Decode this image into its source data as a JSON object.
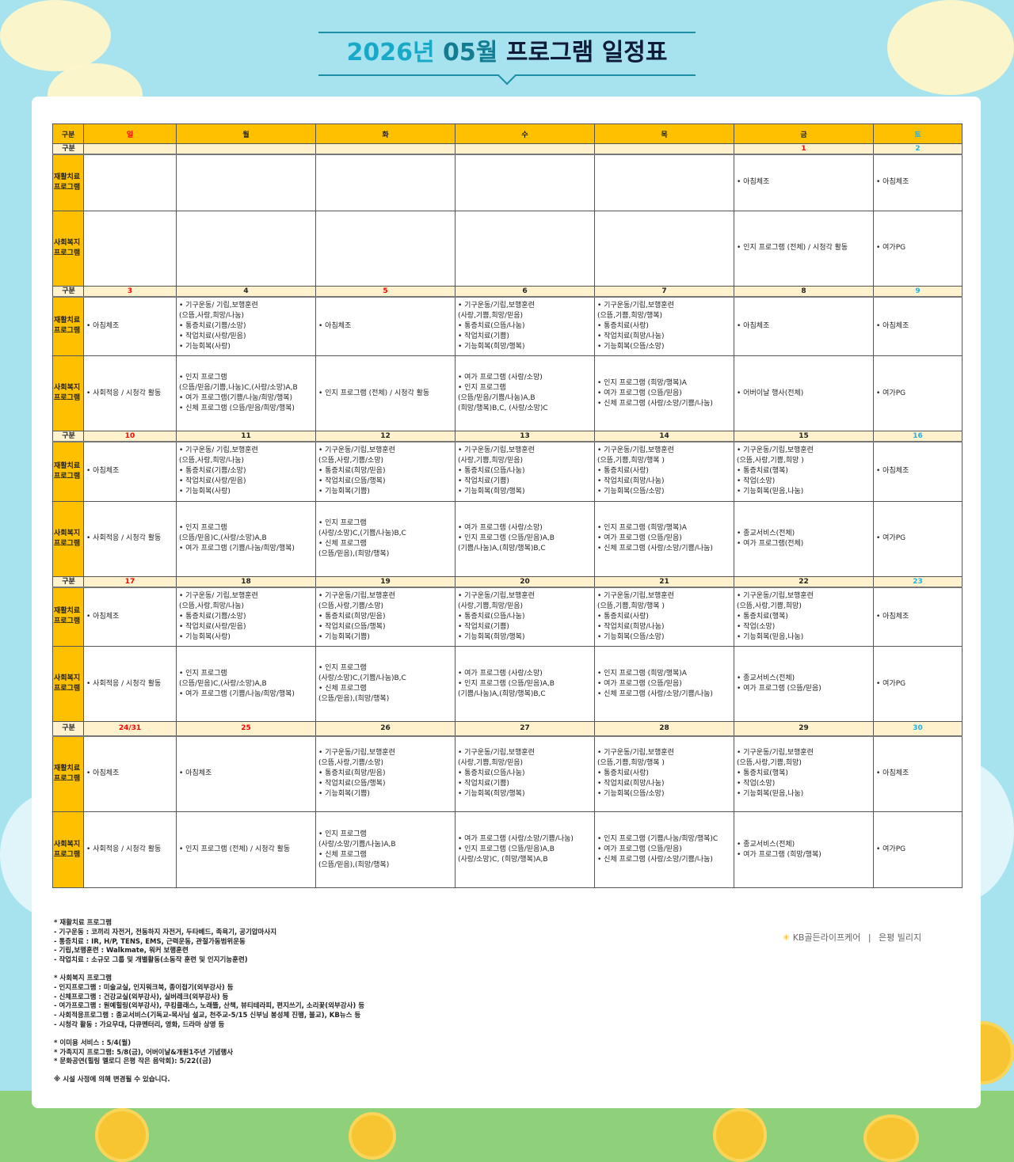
{
  "title": {
    "year_part": "2026년",
    "month_part": "05월",
    "rest": "프로그램 일정표"
  },
  "colors": {
    "header": "#ffc000",
    "date_row": "#fff2cc",
    "holiday": "#ff0000",
    "saturday": "#1fb3e6",
    "background": "#a6e3ee"
  },
  "table": {
    "corner_label": "구분",
    "weekdays": [
      {
        "label": "일",
        "color": "red"
      },
      {
        "label": "월",
        "color": "black"
      },
      {
        "label": "화",
        "color": "black"
      },
      {
        "label": "수",
        "color": "black"
      },
      {
        "label": "목",
        "color": "black"
      },
      {
        "label": "금",
        "color": "black"
      },
      {
        "label": "토",
        "color": "blue"
      }
    ],
    "row_labels": {
      "date": "구분",
      "rehab": "재활치료 프로그램",
      "social": "사회복지 프로그램"
    },
    "weeks": [
      {
        "dates": [
          {
            "label": "",
            "color": "black"
          },
          {
            "label": "",
            "color": "black"
          },
          {
            "label": "",
            "color": "black"
          },
          {
            "label": "",
            "color": "black"
          },
          {
            "label": "",
            "color": "black"
          },
          {
            "label": "1",
            "color": "red"
          },
          {
            "label": "2",
            "color": "blue"
          }
        ],
        "rehab": [
          [],
          [],
          [],
          [],
          [],
          [
            "• 아침체조"
          ],
          [
            "• 아침체조"
          ]
        ],
        "social": [
          [],
          [],
          [],
          [],
          [],
          [
            "• 인지 프로그램 (전체) / 시청각 활동"
          ],
          [
            "• 여가PG"
          ]
        ]
      },
      {
        "dates": [
          {
            "label": "3",
            "color": "red"
          },
          {
            "label": "4",
            "color": "black"
          },
          {
            "label": "5",
            "color": "red"
          },
          {
            "label": "6",
            "color": "black"
          },
          {
            "label": "7",
            "color": "black"
          },
          {
            "label": "8",
            "color": "black"
          },
          {
            "label": "9",
            "color": "blue"
          }
        ],
        "rehab": [
          [
            "• 아침체조"
          ],
          [
            "• 기구운동/ 기립,보행훈련",
            "(으뜸,사랑,희망/나눔)",
            "• 통증치료(기쁨/소망)",
            "• 작업치료(사랑/믿음)",
            "• 기능회복(사랑)"
          ],
          [
            "• 아침체조"
          ],
          [
            "•  기구운동/기립,보행훈련",
            "(사랑,기쁨,희망/믿음)",
            "• 통증치료(으뜸/나눔)",
            "• 작업치료(기쁨)",
            "• 기능회복(희망/행복)"
          ],
          [
            "• 기구운동/기립,보행훈련",
            "(으뜸,기쁨,희망/행복)",
            "• 통증치료(사랑)",
            "• 작업치료(희망/나눔)",
            "• 기능회복(으뜸/소망)"
          ],
          [
            "• 아침체조"
          ],
          [
            "• 아침체조"
          ]
        ],
        "social": [
          [
            "• 사회적응 / 시청각 활동"
          ],
          [
            "• 인지 프로그램",
            "(으뜸/믿음/기쁨,나눔)C,(사랑/소망)A,B",
            "• 여가 프로그램(기쁨/나눔/희망/행복)",
            "• 신체 프로그램 (으뜸/믿음/희망/행복)"
          ],
          [
            "• 인지 프로그램 (전체) / 시청각 활동"
          ],
          [
            "• 여가 프로그램 (사랑/소망)",
            "• 인지 프로그램",
            "(으뜸/믿음/기쁨/나눔)A,B",
            "(희망/행복)B,C, (사랑/소망)C"
          ],
          [
            "• 인지 프로그램 (희망/행복)A",
            "• 여가 프로그램 (으뜸/믿음)",
            "• 신체 프로그램 (사랑/소망/기쁨/나눔)"
          ],
          [
            "• 어버이날 행사(전체)"
          ],
          [
            "• 여가PG"
          ]
        ]
      },
      {
        "dates": [
          {
            "label": "10",
            "color": "red"
          },
          {
            "label": "11",
            "color": "black"
          },
          {
            "label": "12",
            "color": "black"
          },
          {
            "label": "13",
            "color": "black"
          },
          {
            "label": "14",
            "color": "black"
          },
          {
            "label": "15",
            "color": "black"
          },
          {
            "label": "16",
            "color": "blue"
          }
        ],
        "rehab": [
          [
            "• 아침체조"
          ],
          [
            "• 기구운동/ 기립,보행훈련",
            "(으뜸,사랑,희망/나눔)",
            "• 통증치료(기쁨/소망)",
            "• 작업치료(사랑/믿음)",
            "• 기능회복(사랑)"
          ],
          [
            "• 기구운동/기립,보행훈련",
            "(으뜸,사랑,기쁨/소망)",
            "• 통증치료(희망/믿음)",
            "• 작업치료(으뜸/행복)",
            "• 기능회복(기쁨)"
          ],
          [
            "•  기구운동/기립,보행훈련",
            "(사랑,기쁨,희망/믿음)",
            "• 통증치료(으뜸/나눔)",
            "• 작업치료(기쁨)",
            "• 기능회복(희망/행복)"
          ],
          [
            "• 기구운동/기립,보행훈련",
            "(으뜸,기쁨,희망/행복 )",
            "• 통증치료(사랑)",
            "• 작업치료(희망/나눔)",
            "• 기능회복(으뜸/소망)"
          ],
          [
            "•  기구운동/기립,보행훈련",
            "(으뜸,사랑,기쁨,희망 )",
            "• 통증치료(행복)",
            "• 작업(소망)",
            "• 기능회복(믿음,나눔)"
          ],
          [
            "• 아침체조"
          ]
        ],
        "social": [
          [
            "• 사회적응 / 시청각 활동"
          ],
          [
            "• 인지 프로그램",
            "(으뜸/믿음)C,(사랑/소망)A,B",
            "• 여가 프로그램 (기쁨/나눔/희망/행복)"
          ],
          [
            "• 인지 프로그램",
            "(사랑/소망)C,(기쁨/나눔)B,C",
            "• 신체 프로그램",
            "(으뜸/믿음),(희망/행복)"
          ],
          [
            "• 여가 프로그램 (사랑/소망)",
            "• 인지 프로그램 (으뜸/믿음)A,B",
            "(기쁨/나눔)A,(희망/행복)B,C"
          ],
          [
            "• 인지 프로그램 (희망/행복)A",
            "• 여가 프로그램 (으뜸/믿음)",
            "• 신체 프로그램 (사랑/소망/기쁨/나눔)"
          ],
          [
            "• 종교서비스(전체)",
            "• 여가 프로그램(전체)"
          ],
          [
            "• 여가PG"
          ]
        ]
      },
      {
        "dates": [
          {
            "label": "17",
            "color": "red"
          },
          {
            "label": "18",
            "color": "black"
          },
          {
            "label": "19",
            "color": "black"
          },
          {
            "label": "20",
            "color": "black"
          },
          {
            "label": "21",
            "color": "black"
          },
          {
            "label": "22",
            "color": "black"
          },
          {
            "label": "23",
            "color": "blue"
          }
        ],
        "rehab": [
          [
            "• 아침체조"
          ],
          [
            "• 기구운동/ 기립,보행훈련",
            "(으뜸,사랑,희망/나눔)",
            "• 통증치료(기쁨/소망)",
            "• 작업치료(사랑/믿음)",
            "• 기능회복(사랑)"
          ],
          [
            "• 기구운동/기립,보행훈련",
            "(으뜸,사랑,기쁨/소망)",
            "• 통증치료(희망/믿음)",
            "• 작업치료(으뜸/행복)",
            "• 기능회복(기쁨)"
          ],
          [
            "•  기구운동/기립,보행훈련",
            "(사랑,기쁨,희망/믿음)",
            "• 통증치료(으뜸/나눔)",
            "• 작업치료(기쁨)",
            "• 기능회복(희망/행복)"
          ],
          [
            "• 기구운동/기립,보행훈련",
            "(으뜸,기쁨,희망/행복 )",
            "• 통증치료(사랑)",
            "• 작업치료(희망/나눔)",
            "• 기능회복(으뜸/소망)"
          ],
          [
            "•  기구운동/기립,보행훈련",
            "(으뜸,사랑,기쁨,희망)",
            "• 통증치료(행복)",
            "• 작업(소망)",
            "• 기능회복(믿음,나눔)"
          ],
          [
            "• 아침체조"
          ]
        ],
        "social": [
          [
            "• 사회적응 / 시청각 활동"
          ],
          [
            "• 인지 프로그램",
            "(으뜸/믿음)C,(사랑/소망)A,B",
            "• 여가 프로그램 (기쁨/나눔/희망/행복)"
          ],
          [
            "• 인지 프로그램",
            "(사랑/소망)C,(기쁨/나눔)B,C",
            "• 신체 프로그램",
            "(으뜸/믿음),(희망/행복)"
          ],
          [
            "• 여가 프로그램 (사랑/소망)",
            "• 인지 프로그램 (으뜸/믿음)A,B",
            "(기쁨/나눔)A,(희망/행복)B,C"
          ],
          [
            "• 인지 프로그램 (희망/행복)A",
            "• 여가 프로그램 (으뜸/믿음)",
            "• 신체 프로그램 (사랑/소망/기쁨/나눔)"
          ],
          [
            "• 종교서비스(전체)",
            "• 여가 프로그램 (으뜸/믿음)"
          ],
          [
            "• 여가PG"
          ]
        ]
      },
      {
        "dates": [
          {
            "label": "24/31",
            "color": "red"
          },
          {
            "label": "25",
            "color": "red"
          },
          {
            "label": "26",
            "color": "black"
          },
          {
            "label": "27",
            "color": "black"
          },
          {
            "label": "28",
            "color": "black"
          },
          {
            "label": "29",
            "color": "black"
          },
          {
            "label": "30",
            "color": "blue"
          }
        ],
        "rehab": [
          [
            "• 아침체조"
          ],
          [
            "• 아침체조"
          ],
          [
            "• 기구운동/기립,보행훈련",
            "(으뜸,사랑,기쁨/소망)",
            "• 통증치료(희망/믿음)",
            "• 작업치료(으뜸/행복)",
            "• 기능회복(기쁨)"
          ],
          [
            "•  기구운동/기립,보행훈련",
            "(사랑,기쁨,희망/믿음)",
            "• 통증치료(으뜸/나눔)",
            "• 작업치료(기쁨)",
            "• 기능회복(희망/행복)"
          ],
          [
            "• 기구운동/기립,보행훈련",
            "(으뜸,기쁨,희망/행복 )",
            "• 통증치료(사랑)",
            "• 작업치료(희망/나눔)",
            "• 기능회복(으뜸/소망)"
          ],
          [
            "•  기구운동/기립,보행훈련",
            "(으뜸,사랑,기쁨,희망)",
            "• 통증치료(행복)",
            "• 작업(소망)",
            "• 기능회복(믿음,나눔)"
          ],
          [
            "• 아침체조"
          ]
        ],
        "social": [
          [
            "• 사회적응 / 시청각 활동"
          ],
          [
            "• 인지 프로그램 (전체) / 시청각 활동"
          ],
          [
            "• 인지 프로그램",
            "(사랑/소망/기쁨/나눔)A,B",
            "• 신체 프로그램",
            "(으뜸/믿음),(희망/행복)"
          ],
          [
            "• 여가 프로그램 (사랑/소망/기쁨/나눔)",
            "• 인지 프로그램 (으뜸/믿음)A,B",
            "(사랑/소망)C, (희망/행복)A,B"
          ],
          [
            "• 인지 프로그램 (기쁨/나눔/희망/행복)C",
            "• 여가 프로그램 (으뜸/믿음)",
            "• 신체 프로그램 (사랑/소망/기쁨/나눔)"
          ],
          [
            "• 종교서비스(전체)",
            "• 여가 프로그램 (희망/행복)"
          ],
          [
            "• 여가PG"
          ]
        ]
      }
    ]
  },
  "footnotes": [
    [
      "* 재활치료 프로그램",
      " - 기구운동 : 코끼리 자전거, 전동하지 자전거, 두타베드, 족욕기, 공기압마사지",
      " - 통증치료 : IR, H/P, TENS, EMS, 근력운동, 관절가동범위운동",
      " - 기립,보행훈련 : Walkmate, 워커 보행훈련",
      " - 작업치료 : 소규모 그룹 및 개별활동(소동작 훈련 및 인지기능훈련)"
    ],
    [
      "* 사회복지 프로그램",
      " - 인지프로그램 : 미술교실, 인지워크북, 종이접기(외부강사) 등",
      " - 신체프로그램 : 건강교실(외부강사), 실버레크(외부강사) 등",
      " - 여가프로그램 : 원예힐링(외부강사), 쿠킹클래스, 노래뜰, 산책, 뷰티테라피, 편지쓰기, 소리꽃(외부강사) 등",
      " - 사회적응프로그램 : 종교서비스(기독교-목사님 설교, 천주교-5/15 신부님 봉성체 진행, 불교), KB뉴스 등",
      " - 시청각 활동 : 가요무대, 다큐멘터리, 영화, 드라마 상영 등"
    ],
    [
      "* 이미용 서비스 : 5/4(월)",
      "* 가족지지 프로그램: 5/8(금), 어버이날&개원1주년 기념행사",
      "* 문화공연(힐링 멜로디 은평 작은 음악회): 5/22((금)"
    ],
    [
      "※ 시설 사정에 의해 변경될 수 있습니다."
    ]
  ],
  "brand": {
    "logo": "KB골든라이프케어",
    "separator": "|",
    "site": "은평 빌리지"
  }
}
